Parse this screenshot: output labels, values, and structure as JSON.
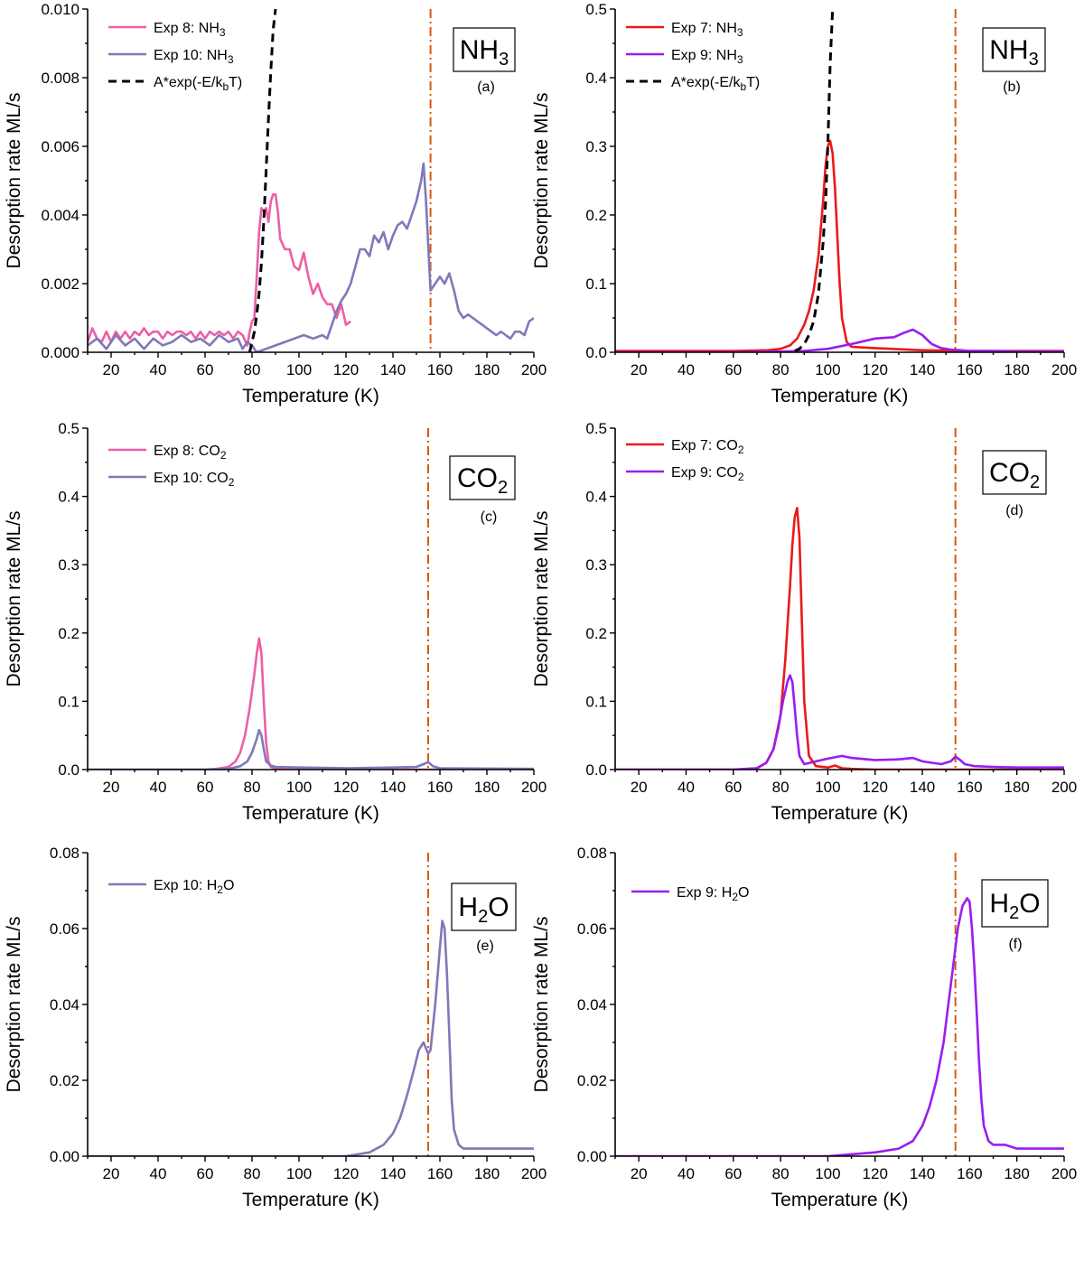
{
  "colors": {
    "exp8": "#ec5fa5",
    "exp10": "#8078b8",
    "exp7": "#ea1a1a",
    "exp9": "#9a1df0",
    "fit": "#000000",
    "vline": "#d45a12"
  },
  "chart_data": [
    {
      "type": "line",
      "panel": "(a)",
      "species": {
        "main": "NH",
        "sub": "3",
        "tail": ""
      },
      "xlabel": "Temperature (K)",
      "ylabel": "Desorption rate ML/s",
      "xlim": [
        10,
        200
      ],
      "ylim": [
        0,
        0.01
      ],
      "xticks": [
        "20",
        "40",
        "60",
        "80",
        "100",
        "120",
        "140",
        "160",
        "180",
        "200"
      ],
      "yticks": [
        "0.000",
        "0.002",
        "0.004",
        "0.006",
        "0.008",
        "0.010"
      ],
      "vline_x": 156,
      "series": [
        {
          "name": "Exp 8: NH",
          "sub": "3",
          "tail": "",
          "color_key": "exp8",
          "style": "solid",
          "x": [
            10,
            12,
            14,
            16,
            18,
            20,
            22,
            24,
            26,
            28,
            30,
            32,
            34,
            36,
            38,
            40,
            42,
            44,
            46,
            48,
            50,
            52,
            54,
            56,
            58,
            60,
            62,
            64,
            66,
            68,
            70,
            72,
            74,
            76,
            78,
            79,
            80,
            81,
            82,
            83,
            84,
            85,
            86,
            87,
            88,
            89,
            90,
            91,
            92,
            94,
            96,
            98,
            100,
            102,
            104,
            106,
            108,
            110,
            112,
            114,
            116,
            118,
            120,
            122
          ],
          "y": [
            0.0003,
            0.0007,
            0.0004,
            0.0003,
            0.0006,
            0.0003,
            0.0006,
            0.0004,
            0.0006,
            0.0004,
            0.0006,
            0.0005,
            0.0007,
            0.0005,
            0.0006,
            0.0006,
            0.0004,
            0.0006,
            0.0005,
            0.0006,
            0.0006,
            0.0005,
            0.0006,
            0.0004,
            0.0006,
            0.0004,
            0.0006,
            0.0005,
            0.0006,
            0.0005,
            0.0006,
            0.0004,
            0.0006,
            0.0005,
            0.0002,
            0.0006,
            0.0009,
            0.001,
            0.0022,
            0.0035,
            0.0042,
            0.0041,
            0.0042,
            0.0038,
            0.0044,
            0.0046,
            0.0046,
            0.0041,
            0.0033,
            0.003,
            0.003,
            0.0025,
            0.0024,
            0.0029,
            0.0022,
            0.0017,
            0.002,
            0.0016,
            0.0014,
            0.0014,
            0.001,
            0.0014,
            0.0008,
            0.0009
          ]
        },
        {
          "name": "Exp 10: NH",
          "sub": "3",
          "tail": "",
          "color_key": "exp10",
          "style": "solid",
          "x": [
            10,
            14,
            18,
            22,
            26,
            30,
            34,
            38,
            42,
            46,
            50,
            54,
            58,
            62,
            66,
            70,
            74,
            76,
            78,
            80,
            82,
            86,
            90,
            94,
            98,
            102,
            106,
            110,
            112,
            114,
            116,
            118,
            120,
            122,
            124,
            126,
            128,
            130,
            132,
            134,
            136,
            138,
            140,
            142,
            144,
            146,
            148,
            150,
            152,
            153,
            154,
            156,
            158,
            160,
            162,
            164,
            166,
            168,
            170,
            172,
            174,
            176,
            178,
            180,
            182,
            184,
            186,
            188,
            190,
            192,
            194,
            196,
            198,
            200
          ],
          "y": [
            0.0002,
            0.0004,
            0.0001,
            0.0005,
            0.0002,
            0.0004,
            0.0001,
            0.0004,
            0.0002,
            0.0003,
            0.0005,
            0.0003,
            0.0004,
            0.0002,
            0.0005,
            0.0003,
            0.0004,
            0.0001,
            0.0003,
            0.0002,
            0.0,
            0.0001,
            0.0002,
            0.0003,
            0.0004,
            0.0005,
            0.0004,
            0.0005,
            0.0004,
            0.0008,
            0.0012,
            0.0015,
            0.0017,
            0.002,
            0.0025,
            0.003,
            0.003,
            0.0028,
            0.0034,
            0.0032,
            0.0035,
            0.003,
            0.0034,
            0.0037,
            0.0038,
            0.0036,
            0.004,
            0.0044,
            0.005,
            0.0055,
            0.0045,
            0.0018,
            0.002,
            0.0022,
            0.002,
            0.0023,
            0.0018,
            0.0012,
            0.001,
            0.0011,
            0.001,
            0.0009,
            0.0008,
            0.0007,
            0.0006,
            0.0005,
            0.0006,
            0.0005,
            0.0004,
            0.0006,
            0.0006,
            0.0005,
            0.0009,
            0.001
          ]
        },
        {
          "name": "A*exp(-E/k",
          "sub": "b",
          "tail": "T)",
          "color_key": "fit",
          "style": "dashed",
          "x": [
            79,
            80,
            81,
            82,
            83,
            84,
            85,
            86,
            87,
            88,
            89,
            90
          ],
          "y": [
            0.0,
            0.0003,
            0.0006,
            0.0011,
            0.0017,
            0.0026,
            0.0038,
            0.0053,
            0.0068,
            0.0082,
            0.0094,
            0.01
          ]
        }
      ]
    },
    {
      "type": "line",
      "panel": "(b)",
      "species": {
        "main": "NH",
        "sub": "3",
        "tail": ""
      },
      "xlabel": "Temperature (K)",
      "ylabel": "Desorption rate ML/s",
      "xlim": [
        10,
        200
      ],
      "ylim": [
        0,
        0.5
      ],
      "xticks": [
        "20",
        "40",
        "60",
        "80",
        "100",
        "120",
        "140",
        "160",
        "180",
        "200"
      ],
      "yticks": [
        "0.0",
        "0.1",
        "0.2",
        "0.3",
        "0.4",
        "0.5"
      ],
      "vline_x": 154,
      "series": [
        {
          "name": "Exp 7: NH",
          "sub": "3",
          "tail": "",
          "color_key": "exp7",
          "style": "solid",
          "x": [
            10,
            40,
            60,
            75,
            80,
            84,
            87,
            90,
            92,
            94,
            96,
            97,
            98,
            99,
            100,
            101,
            102,
            103,
            104,
            105,
            106,
            108,
            110,
            120,
            140,
            160,
            200
          ],
          "y": [
            0.002,
            0.002,
            0.002,
            0.003,
            0.005,
            0.01,
            0.02,
            0.04,
            0.06,
            0.09,
            0.14,
            0.18,
            0.22,
            0.27,
            0.3,
            0.308,
            0.29,
            0.24,
            0.17,
            0.1,
            0.05,
            0.015,
            0.008,
            0.006,
            0.003,
            0.002,
            0.002
          ]
        },
        {
          "name": "Exp 9: NH",
          "sub": "3",
          "tail": "",
          "color_key": "exp9",
          "style": "solid",
          "x": [
            10,
            40,
            60,
            80,
            90,
            100,
            110,
            120,
            128,
            132,
            136,
            140,
            144,
            148,
            152,
            156,
            160,
            170,
            180,
            200
          ],
          "y": [
            0.0,
            0.0,
            0.0,
            0.001,
            0.002,
            0.005,
            0.012,
            0.02,
            0.022,
            0.028,
            0.033,
            0.025,
            0.012,
            0.006,
            0.004,
            0.003,
            0.002,
            0.002,
            0.001,
            0.001
          ]
        },
        {
          "name": "A*exp(-E/k",
          "sub": "b",
          "tail": "T)",
          "color_key": "fit",
          "style": "dashed",
          "x": [
            86,
            88,
            90,
            92,
            94,
            96,
            98,
            99,
            100,
            101,
            102
          ],
          "y": [
            0.002,
            0.005,
            0.012,
            0.025,
            0.045,
            0.085,
            0.16,
            0.215,
            0.3,
            0.42,
            0.5
          ]
        }
      ]
    },
    {
      "type": "line",
      "panel": "(c)",
      "species": {
        "main": "CO",
        "sub": "2",
        "tail": ""
      },
      "xlabel": "Temperature (K)",
      "ylabel": "Desorption rate ML/s",
      "xlim": [
        10,
        200
      ],
      "ylim": [
        0,
        0.5
      ],
      "xticks": [
        "20",
        "40",
        "60",
        "80",
        "100",
        "120",
        "140",
        "160",
        "180",
        "200"
      ],
      "yticks": [
        "0.0",
        "0.1",
        "0.2",
        "0.3",
        "0.4",
        "0.5"
      ],
      "vline_x": 155,
      "series": [
        {
          "name": "Exp 8: CO",
          "sub": "2",
          "tail": "",
          "color_key": "exp8",
          "style": "solid",
          "x": [
            10,
            60,
            65,
            70,
            73,
            75,
            77,
            79,
            81,
            82,
            83,
            84,
            85,
            86,
            87,
            88,
            90,
            95,
            200
          ],
          "y": [
            0.0,
            0.0,
            0.001,
            0.004,
            0.012,
            0.025,
            0.05,
            0.09,
            0.14,
            0.17,
            0.192,
            0.17,
            0.1,
            0.04,
            0.012,
            0.004,
            0.001,
            0.0,
            0.0
          ]
        },
        {
          "name": "Exp 10: CO",
          "sub": "2",
          "tail": "",
          "color_key": "exp10",
          "style": "solid",
          "x": [
            10,
            60,
            70,
            75,
            78,
            80,
            82,
            83,
            84,
            85,
            86,
            88,
            90,
            100,
            120,
            140,
            150,
            153,
            155,
            157,
            160,
            200
          ],
          "y": [
            0.0,
            0.0,
            0.001,
            0.005,
            0.012,
            0.025,
            0.045,
            0.058,
            0.05,
            0.03,
            0.012,
            0.006,
            0.004,
            0.003,
            0.002,
            0.003,
            0.004,
            0.008,
            0.011,
            0.005,
            0.002,
            0.001
          ]
        }
      ]
    },
    {
      "type": "line",
      "panel": "(d)",
      "species": {
        "main": "CO",
        "sub": "2",
        "tail": ""
      },
      "xlabel": "Temperature (K)",
      "ylabel": "Desorption rate ML/s",
      "xlim": [
        10,
        200
      ],
      "ylim": [
        0,
        0.5
      ],
      "xticks": [
        "20",
        "40",
        "60",
        "80",
        "100",
        "120",
        "140",
        "160",
        "180",
        "200"
      ],
      "yticks": [
        "0.0",
        "0.1",
        "0.2",
        "0.3",
        "0.4",
        "0.5"
      ],
      "vline_x": 154,
      "series": [
        {
          "name": "Exp 7: CO",
          "sub": "2",
          "tail": "",
          "color_key": "exp7",
          "style": "solid",
          "x": [
            10,
            60,
            70,
            74,
            77,
            80,
            82,
            84,
            85,
            86,
            87,
            88,
            89,
            90,
            92,
            95,
            100,
            103,
            106,
            110,
            120,
            200
          ],
          "y": [
            0.0,
            0.0,
            0.002,
            0.01,
            0.03,
            0.08,
            0.16,
            0.27,
            0.33,
            0.37,
            0.383,
            0.34,
            0.22,
            0.1,
            0.02,
            0.005,
            0.003,
            0.006,
            0.002,
            0.001,
            0.0,
            0.0
          ]
        },
        {
          "name": "Exp 9: CO",
          "sub": "2",
          "tail": "",
          "color_key": "exp9",
          "style": "solid",
          "x": [
            10,
            60,
            70,
            74,
            77,
            79,
            81,
            83,
            84,
            85,
            86,
            87,
            88,
            90,
            95,
            100,
            106,
            110,
            120,
            130,
            136,
            140,
            148,
            152,
            154,
            156,
            158,
            162,
            170,
            180,
            200
          ],
          "y": [
            0.0,
            0.0,
            0.002,
            0.01,
            0.03,
            0.06,
            0.1,
            0.13,
            0.138,
            0.128,
            0.09,
            0.05,
            0.02,
            0.008,
            0.012,
            0.016,
            0.02,
            0.017,
            0.014,
            0.015,
            0.017,
            0.012,
            0.008,
            0.012,
            0.019,
            0.014,
            0.008,
            0.005,
            0.004,
            0.003,
            0.003
          ]
        }
      ]
    },
    {
      "type": "line",
      "panel": "(e)",
      "species": {
        "main": "H",
        "sub": "2",
        "tail": "O"
      },
      "xlabel": "Temperature (K)",
      "ylabel": "Desorption rate ML/s",
      "xlim": [
        10,
        200
      ],
      "ylim": [
        0,
        0.08
      ],
      "xticks": [
        "20",
        "40",
        "60",
        "80",
        "100",
        "120",
        "140",
        "160",
        "180",
        "200"
      ],
      "yticks": [
        "0.00",
        "0.02",
        "0.04",
        "0.06",
        "0.08"
      ],
      "vline_x": 155,
      "series": [
        {
          "name": "Exp 10: H",
          "sub": "2",
          "tail": "O",
          "color_key": "exp10",
          "style": "solid",
          "x": [
            10,
            40,
            80,
            100,
            120,
            130,
            136,
            140,
            143,
            146,
            149,
            151,
            153,
            155,
            156,
            158,
            160,
            161,
            162,
            163,
            164,
            165,
            166,
            168,
            170,
            175,
            180,
            190,
            200
          ],
          "y": [
            0.0,
            0.0,
            0.0,
            0.0,
            0.0,
            0.001,
            0.003,
            0.006,
            0.01,
            0.016,
            0.023,
            0.028,
            0.03,
            0.027,
            0.028,
            0.04,
            0.055,
            0.062,
            0.06,
            0.048,
            0.032,
            0.015,
            0.007,
            0.003,
            0.002,
            0.002,
            0.002,
            0.002,
            0.002
          ]
        }
      ]
    },
    {
      "type": "line",
      "panel": "(f)",
      "species": {
        "main": "H",
        "sub": "2",
        "tail": "O"
      },
      "xlabel": "Temperature (K)",
      "ylabel": "Desorption rate ML/s",
      "xlim": [
        10,
        200
      ],
      "ylim": [
        0,
        0.08
      ],
      "xticks": [
        "20",
        "40",
        "60",
        "80",
        "100",
        "120",
        "140",
        "160",
        "180",
        "200"
      ],
      "yticks": [
        "0.00",
        "0.02",
        "0.04",
        "0.06",
        "0.08"
      ],
      "vline_x": 154,
      "series": [
        {
          "name": "Exp 9: H",
          "sub": "2",
          "tail": "O",
          "color_key": "exp9",
          "style": "solid",
          "x": [
            10,
            40,
            80,
            100,
            120,
            130,
            136,
            140,
            143,
            146,
            149,
            151,
            153,
            155,
            157,
            159,
            160,
            161,
            162,
            163,
            164,
            165,
            166,
            168,
            170,
            175,
            180,
            190,
            200
          ],
          "y": [
            0.0,
            0.0,
            0.0,
            0.0,
            0.001,
            0.002,
            0.004,
            0.008,
            0.013,
            0.02,
            0.03,
            0.04,
            0.05,
            0.06,
            0.066,
            0.068,
            0.067,
            0.06,
            0.05,
            0.038,
            0.025,
            0.015,
            0.008,
            0.004,
            0.003,
            0.003,
            0.002,
            0.002,
            0.002
          ]
        }
      ]
    }
  ]
}
